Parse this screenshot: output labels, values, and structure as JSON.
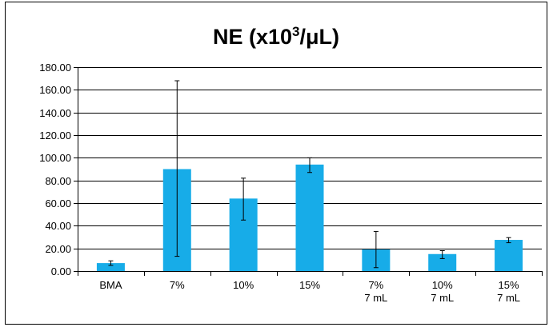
{
  "chart_data": {
    "type": "bar",
    "title": "NE (x10³/μL)",
    "title_parts": {
      "main": "NE (x10",
      "sup": "3",
      "rest": "/μL)"
    },
    "xlabel": "",
    "ylabel": "",
    "categories": [
      [
        "BMA"
      ],
      [
        "7%"
      ],
      [
        "10%"
      ],
      [
        "15%"
      ],
      [
        "7%",
        "7 mL"
      ],
      [
        "10%",
        "7 mL"
      ],
      [
        "15%",
        "7 mL"
      ]
    ],
    "values": [
      7.0,
      90.0,
      64.0,
      94.0,
      19.0,
      15.0,
      27.5
    ],
    "error_low": [
      5.0,
      13.0,
      45.0,
      87.0,
      3.0,
      11.0,
      25.0
    ],
    "error_high": [
      9.0,
      168.0,
      82.0,
      100.0,
      35.0,
      18.0,
      29.5
    ],
    "ylim": [
      0,
      180
    ],
    "yticks": [
      "0.00",
      "20.00",
      "40.00",
      "60.00",
      "80.00",
      "100.00",
      "120.00",
      "140.00",
      "160.00",
      "180.00"
    ],
    "grid": true,
    "legend": "none",
    "colors": {
      "bar": "#17ace8",
      "axis": "#000000",
      "grid": "#000000"
    }
  }
}
